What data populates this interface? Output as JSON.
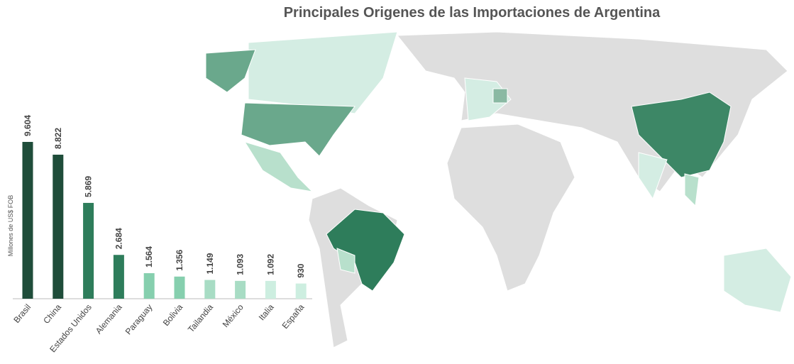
{
  "chart_data": {
    "type": "bar",
    "title": "Principales Origenes de las Importaciones de Argentina",
    "ylabel": "Millones  de US$ FOB",
    "categories": [
      "Brasil",
      "China",
      "Estados Unidos",
      "Alemania",
      "Paraguay",
      "Bolivia",
      "Tailandia",
      "México",
      "Italia",
      "España"
    ],
    "values": [
      9604,
      8822,
      5869,
      2684,
      1564,
      1356,
      1149,
      1093,
      1092,
      930
    ],
    "value_labels": [
      "9.604",
      "8.822",
      "5.869",
      "2.684",
      "1.564",
      "1.356",
      "1.149",
      "1.093",
      "1.092",
      "930"
    ],
    "colors": [
      "#1f4d3a",
      "#1f4d3a",
      "#2e7d5b",
      "#2e7d5b",
      "#86cfae",
      "#86cfae",
      "#a8dcc4",
      "#a8dcc4",
      "#cdeee0",
      "#cdeee0"
    ]
  }
}
